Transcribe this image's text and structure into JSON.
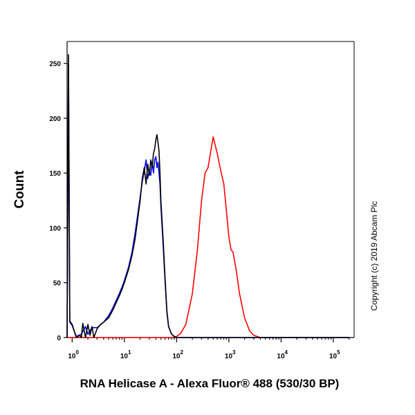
{
  "chart_data": {
    "type": "line",
    "title": "",
    "xlabel": "RNA Helicase A - Alexa Fluor® 488 (530/30 BP)",
    "ylabel": "Count",
    "xscale": "log",
    "xlim": [
      0.8,
      250000
    ],
    "ylim": [
      0,
      270
    ],
    "x_ticks": [
      {
        "base": "10",
        "exp": "0",
        "value": 1
      },
      {
        "base": "10",
        "exp": "1",
        "value": 10
      },
      {
        "base": "10",
        "exp": "2",
        "value": 100
      },
      {
        "base": "10",
        "exp": "3",
        "value": 1000
      },
      {
        "base": "10",
        "exp": "4",
        "value": 10000
      },
      {
        "base": "10",
        "exp": "5",
        "value": 100000
      }
    ],
    "y_ticks": [
      0,
      50,
      100,
      150,
      200,
      250
    ],
    "grid": false,
    "legend": "none",
    "series": [
      {
        "color": "#000000",
        "x": [
          0.8,
          0.85,
          0.9,
          1.0,
          1.2,
          1.4,
          1.5,
          1.6,
          1.8,
          2.0,
          2.2,
          2.4,
          2.6,
          3.0,
          3.5,
          4.0,
          5.0,
          6.0,
          7.0,
          8.0,
          9.0,
          10.0,
          12.0,
          14.0,
          16.0,
          18.0,
          20.0,
          22.0,
          24.0,
          26.0,
          28.0,
          30.0,
          32.0,
          34.0,
          36.0,
          38.0,
          40.0,
          42.0,
          44.0,
          46.0,
          48.0,
          50.0,
          55.0,
          60.0,
          65.0,
          70.0,
          80.0,
          90.0,
          100.0,
          110.0,
          130.0,
          200000
        ],
        "y": [
          0,
          258,
          15,
          12,
          0,
          2,
          0,
          13,
          0,
          12,
          2,
          10,
          0,
          8,
          12,
          14,
          18,
          25,
          32,
          38,
          44,
          50,
          62,
          75,
          90,
          108,
          125,
          145,
          155,
          140,
          158,
          148,
          162,
          155,
          168,
          172,
          180,
          185,
          178,
          170,
          150,
          125,
          90,
          55,
          25,
          10,
          3,
          1,
          0,
          0,
          0,
          0
        ]
      },
      {
        "color": "#0000ff",
        "x": [
          0.8,
          0.85,
          0.9,
          1.0,
          1.2,
          1.5,
          1.8,
          2.0,
          2.4,
          3.0,
          4.0,
          5.0,
          6.0,
          7.0,
          8.0,
          9.0,
          10.0,
          12.0,
          14.0,
          16.0,
          18.0,
          20.0,
          22.0,
          24.0,
          26.0,
          28.0,
          30.0,
          32.0,
          34.0,
          36.0,
          38.0,
          40.0,
          42.0,
          44.0,
          46.0,
          48.0,
          50.0,
          55.0,
          60.0,
          65.0,
          70.0,
          80.0,
          90.0,
          100.0,
          200000
        ],
        "y": [
          0,
          250,
          14,
          11,
          1,
          3,
          10,
          3,
          9,
          9,
          14,
          20,
          27,
          34,
          40,
          46,
          52,
          64,
          78,
          95,
          112,
          128,
          142,
          152,
          162,
          145,
          152,
          148,
          160,
          150,
          162,
          165,
          155,
          160,
          150,
          140,
          120,
          85,
          52,
          24,
          10,
          3,
          1,
          0,
          0
        ]
      },
      {
        "color": "#ff0000",
        "x": [
          0.8,
          80.0,
          100.0,
          120.0,
          150.0,
          200.0,
          250.0,
          300.0,
          350.0,
          400.0,
          450.0,
          500.0,
          550.0,
          600.0,
          700.0,
          800.0,
          900.0,
          1000.0,
          1100.0,
          1200.0,
          1400.0,
          1600.0,
          2000.0,
          2500.0,
          3000.0,
          4000.0,
          200000
        ],
        "y": [
          0,
          0,
          1,
          4,
          12,
          40,
          80,
          125,
          150,
          155,
          170,
          183,
          175,
          168,
          152,
          140,
          115,
          92,
          80,
          78,
          60,
          40,
          18,
          6,
          2,
          0,
          0
        ]
      }
    ]
  },
  "copyright": "Copyright (c) 2019 Abcam Plc"
}
